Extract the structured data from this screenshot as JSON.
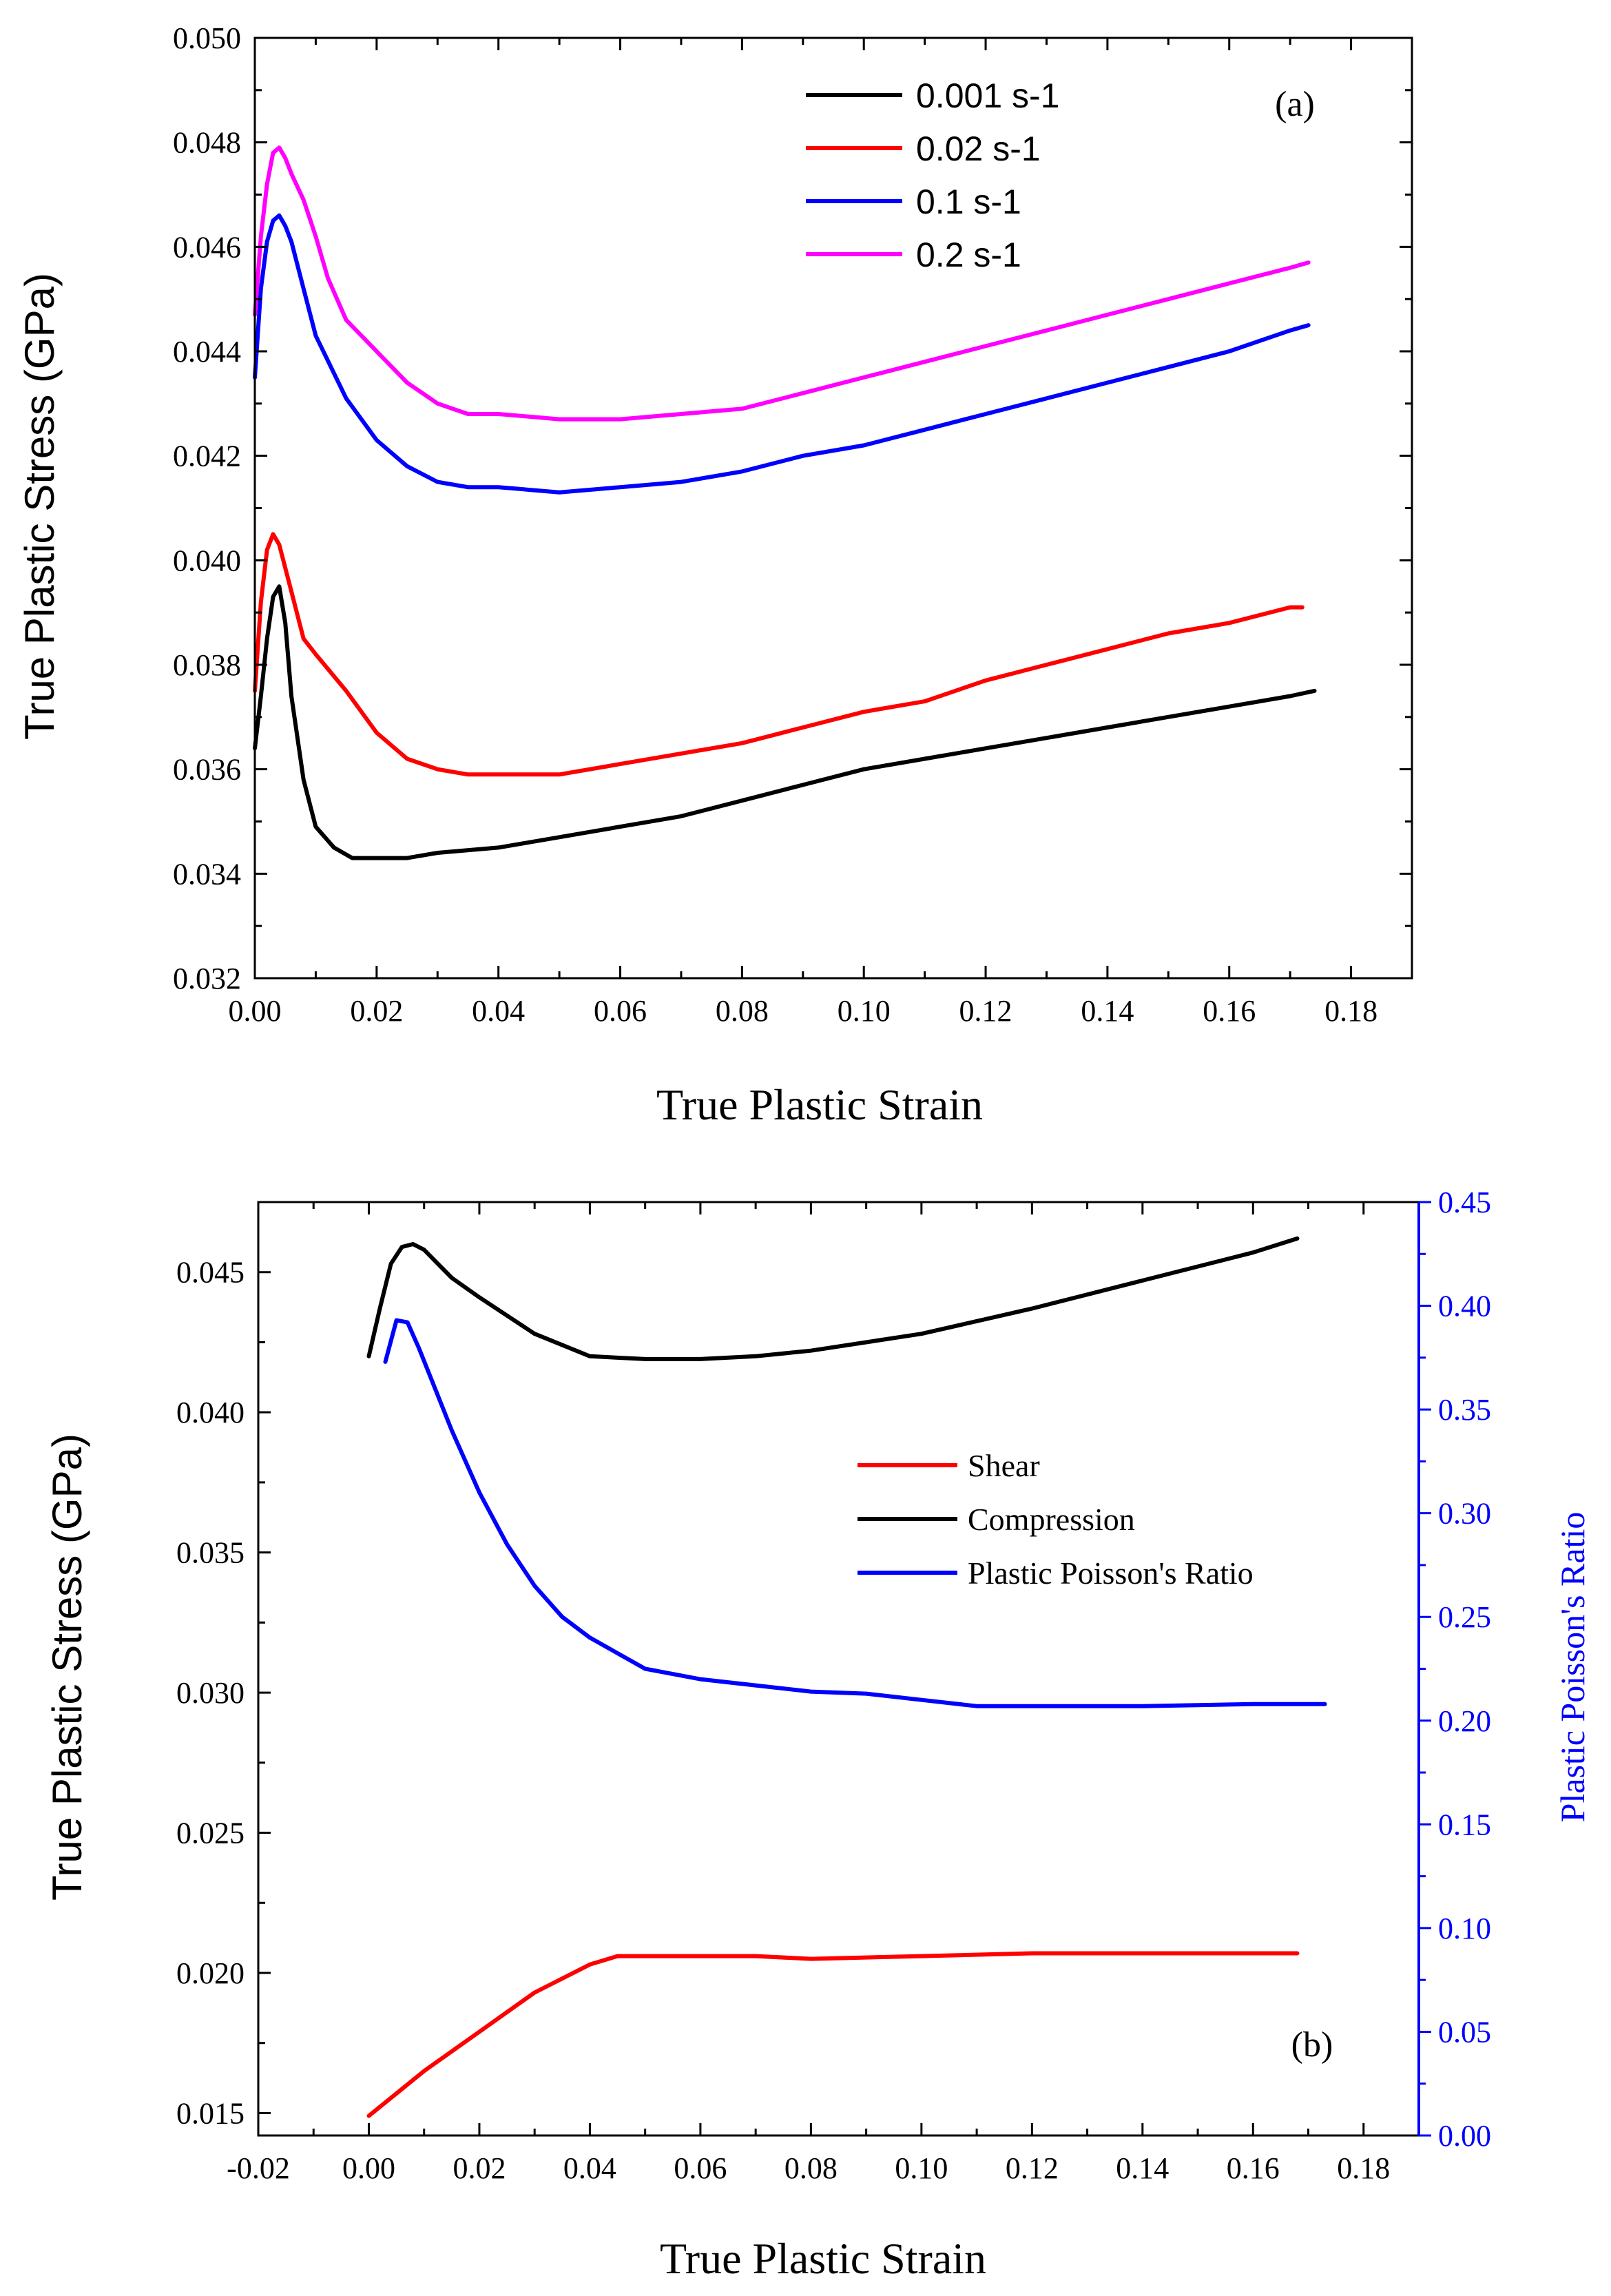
{
  "chart_data": [
    {
      "type": "line",
      "panel_label": "(a)",
      "xlabel": "True Plastic Strain",
      "ylabel": "True Plastic Stress (GPa)",
      "xlim": [
        0.0,
        0.19
      ],
      "ylim": [
        0.032,
        0.05
      ],
      "xticks": [
        "0.00",
        "0.02",
        "0.04",
        "0.06",
        "0.08",
        "0.10",
        "0.12",
        "0.14",
        "0.16",
        "0.18"
      ],
      "yticks": [
        "0.032",
        "0.034",
        "0.036",
        "0.038",
        "0.040",
        "0.042",
        "0.044",
        "0.046",
        "0.048",
        "0.050"
      ],
      "legend_position": "top-center",
      "series": [
        {
          "name": "0.001 s-1",
          "color": "#000000",
          "x": [
            0.0,
            0.001,
            0.002,
            0.003,
            0.004,
            0.005,
            0.006,
            0.008,
            0.01,
            0.013,
            0.016,
            0.02,
            0.025,
            0.03,
            0.04,
            0.05,
            0.06,
            0.07,
            0.08,
            0.09,
            0.1,
            0.11,
            0.12,
            0.13,
            0.14,
            0.15,
            0.16,
            0.17,
            0.174
          ],
          "y": [
            0.0364,
            0.0374,
            0.0385,
            0.0393,
            0.0395,
            0.0388,
            0.0374,
            0.0358,
            0.0349,
            0.0345,
            0.0343,
            0.0343,
            0.0343,
            0.0344,
            0.0345,
            0.0347,
            0.0349,
            0.0351,
            0.0354,
            0.0357,
            0.036,
            0.0362,
            0.0364,
            0.0366,
            0.0368,
            0.037,
            0.0372,
            0.0374,
            0.0375
          ]
        },
        {
          "name": "0.02 s-1",
          "color": "#ff0000",
          "x": [
            0.0,
            0.001,
            0.002,
            0.003,
            0.004,
            0.006,
            0.008,
            0.01,
            0.015,
            0.02,
            0.025,
            0.03,
            0.035,
            0.04,
            0.05,
            0.06,
            0.07,
            0.08,
            0.09,
            0.1,
            0.11,
            0.12,
            0.13,
            0.14,
            0.15,
            0.16,
            0.17,
            0.172
          ],
          "y": [
            0.0375,
            0.0392,
            0.0402,
            0.0405,
            0.0403,
            0.0394,
            0.0385,
            0.0382,
            0.0375,
            0.0367,
            0.0362,
            0.036,
            0.0359,
            0.0359,
            0.0359,
            0.0361,
            0.0363,
            0.0365,
            0.0368,
            0.0371,
            0.0373,
            0.0377,
            0.038,
            0.0383,
            0.0386,
            0.0388,
            0.0391,
            0.0391
          ]
        },
        {
          "name": "0.1 s-1",
          "color": "#0000ff",
          "x": [
            0.0,
            0.001,
            0.002,
            0.003,
            0.004,
            0.005,
            0.006,
            0.008,
            0.01,
            0.015,
            0.02,
            0.025,
            0.03,
            0.035,
            0.04,
            0.05,
            0.06,
            0.07,
            0.08,
            0.09,
            0.1,
            0.11,
            0.12,
            0.13,
            0.14,
            0.15,
            0.16,
            0.17,
            0.173
          ],
          "y": [
            0.0435,
            0.0452,
            0.0461,
            0.0465,
            0.0466,
            0.0464,
            0.0461,
            0.0452,
            0.0443,
            0.0431,
            0.0423,
            0.0418,
            0.0415,
            0.0414,
            0.0414,
            0.0413,
            0.0414,
            0.0415,
            0.0417,
            0.042,
            0.0422,
            0.0425,
            0.0428,
            0.0431,
            0.0434,
            0.0437,
            0.044,
            0.0444,
            0.0445
          ]
        },
        {
          "name": "0.2 s-1",
          "color": "#ff00ff",
          "x": [
            0.0,
            0.001,
            0.002,
            0.003,
            0.004,
            0.005,
            0.006,
            0.008,
            0.01,
            0.012,
            0.015,
            0.02,
            0.025,
            0.03,
            0.035,
            0.04,
            0.05,
            0.06,
            0.07,
            0.08,
            0.09,
            0.1,
            0.11,
            0.12,
            0.13,
            0.14,
            0.15,
            0.16,
            0.17,
            0.173
          ],
          "y": [
            0.0447,
            0.0462,
            0.0472,
            0.0478,
            0.0479,
            0.0477,
            0.0474,
            0.0469,
            0.0462,
            0.0454,
            0.0446,
            0.044,
            0.0434,
            0.043,
            0.0428,
            0.0428,
            0.0427,
            0.0427,
            0.0428,
            0.0429,
            0.0432,
            0.0435,
            0.0438,
            0.0441,
            0.0444,
            0.0447,
            0.045,
            0.0453,
            0.0456,
            0.0457
          ]
        }
      ]
    },
    {
      "type": "line",
      "panel_label": "(b)",
      "xlabel": "True Plastic Strain",
      "ylabel": "True Plastic Stress (GPa)",
      "y2label": "Plastic Poisson's Ratio",
      "xlim": [
        -0.02,
        0.19
      ],
      "ylim": [
        0.0142,
        0.0475
      ],
      "y2lim": [
        0.0,
        0.45
      ],
      "xticks": [
        "-0.02",
        "0.00",
        "0.02",
        "0.04",
        "0.06",
        "0.08",
        "0.10",
        "0.12",
        "0.14",
        "0.16",
        "0.18"
      ],
      "yticks": [
        "0.015",
        "0.020",
        "0.025",
        "0.030",
        "0.035",
        "0.040",
        "0.045"
      ],
      "y2ticks": [
        "0.00",
        "0.05",
        "0.10",
        "0.15",
        "0.20",
        "0.25",
        "0.30",
        "0.35",
        "0.40",
        "0.45"
      ],
      "legend_position": "center-right",
      "series": [
        {
          "name": "Shear",
          "color": "#ff0000",
          "axis": "left",
          "x": [
            0.0,
            0.005,
            0.01,
            0.02,
            0.03,
            0.04,
            0.045,
            0.05,
            0.07,
            0.08,
            0.1,
            0.12,
            0.14,
            0.16,
            0.168
          ],
          "y": [
            0.0149,
            0.0157,
            0.0165,
            0.0179,
            0.0193,
            0.0203,
            0.0206,
            0.0206,
            0.0206,
            0.0205,
            0.0206,
            0.0207,
            0.0207,
            0.0207,
            0.0207
          ]
        },
        {
          "name": "Compression",
          "color": "#000000",
          "axis": "left",
          "x": [
            0.0,
            0.002,
            0.004,
            0.006,
            0.008,
            0.01,
            0.015,
            0.02,
            0.03,
            0.04,
            0.05,
            0.06,
            0.07,
            0.08,
            0.1,
            0.12,
            0.14,
            0.16,
            0.168
          ],
          "y": [
            0.042,
            0.0437,
            0.0453,
            0.0459,
            0.046,
            0.0458,
            0.0448,
            0.0441,
            0.0428,
            0.042,
            0.0419,
            0.0419,
            0.042,
            0.0422,
            0.0428,
            0.0437,
            0.0447,
            0.0457,
            0.0462
          ]
        },
        {
          "name": "Plastic Poisson's Ratio",
          "color": "#0000ff",
          "axis": "right",
          "x": [
            0.003,
            0.005,
            0.007,
            0.009,
            0.012,
            0.015,
            0.02,
            0.025,
            0.03,
            0.035,
            0.04,
            0.05,
            0.06,
            0.07,
            0.08,
            0.09,
            0.1,
            0.11,
            0.12,
            0.14,
            0.16,
            0.173
          ],
          "y": [
            0.373,
            0.393,
            0.392,
            0.38,
            0.36,
            0.34,
            0.31,
            0.285,
            0.265,
            0.25,
            0.24,
            0.225,
            0.22,
            0.217,
            0.214,
            0.213,
            0.21,
            0.207,
            0.207,
            0.207,
            0.208,
            0.208
          ]
        }
      ]
    }
  ]
}
